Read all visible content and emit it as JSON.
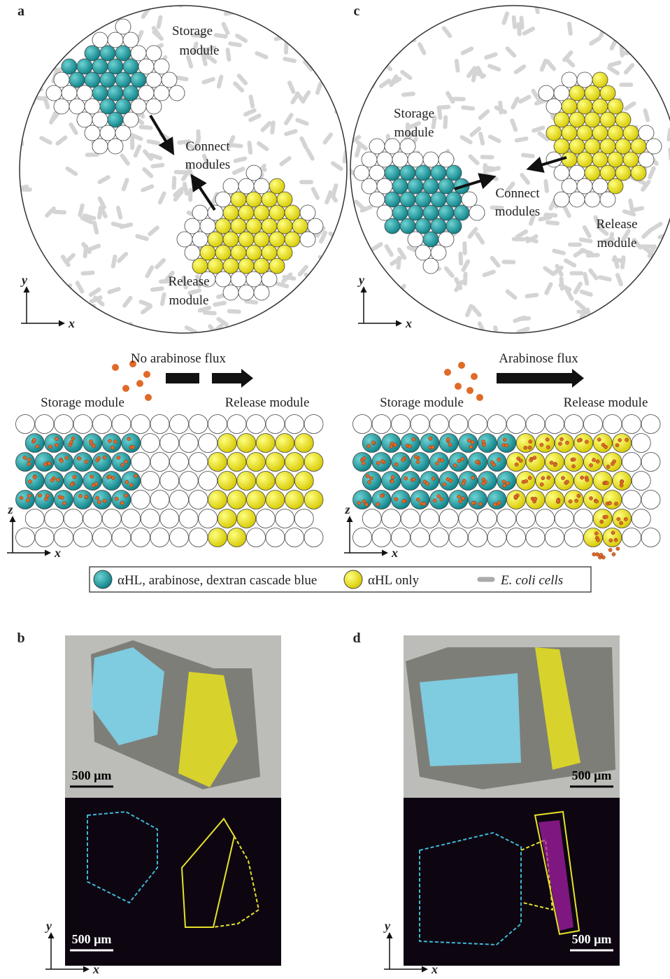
{
  "panels": {
    "a": {
      "label": "a",
      "storage": [
        "Storage",
        "module"
      ],
      "connect": [
        "Connect",
        "modules"
      ],
      "release": [
        "Release",
        "module"
      ],
      "axes": [
        "y",
        "x"
      ]
    },
    "a_side": {
      "flux": "No arabinose flux",
      "storage": "Storage module",
      "release": "Release module",
      "axes": [
        "z",
        "x"
      ]
    },
    "c": {
      "label": "c",
      "storage": [
        "Storage",
        "module"
      ],
      "connect": [
        "Connect",
        "modules"
      ],
      "release": [
        "Release",
        "module"
      ],
      "axes": [
        "y",
        "x"
      ]
    },
    "c_side": {
      "flux": "Arabinose flux",
      "storage": "Storage module",
      "release": "Release module",
      "axes": [
        "z",
        "x"
      ]
    },
    "b": {
      "label": "b",
      "scale_top": "500 µm",
      "scale_bottom": "500 µm",
      "axes": [
        "y",
        "x"
      ]
    },
    "d": {
      "label": "d",
      "scale_top": "500 µm",
      "scale_bottom": "500 µm",
      "axes": [
        "y",
        "x"
      ]
    }
  },
  "legend": [
    "αHL, arabinose, dextran cascade blue",
    "αHL only",
    "E. coli cells"
  ]
}
